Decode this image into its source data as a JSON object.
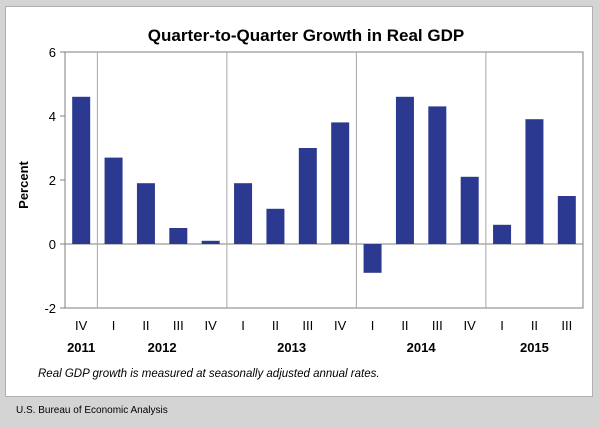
{
  "source_label": "U.S. Bureau of Economic Analysis",
  "chart_data": {
    "type": "bar",
    "title": "Quarter-to-Quarter Growth in Real GDP",
    "ylabel": "Percent",
    "xlabel": "",
    "ylim": [
      -2,
      6
    ],
    "yticks": [
      -2,
      0,
      2,
      4,
      6
    ],
    "grid": false,
    "categories": [
      "IV",
      "I",
      "II",
      "III",
      "IV",
      "I",
      "II",
      "III",
      "IV",
      "I",
      "II",
      "III",
      "IV",
      "I",
      "II",
      "III"
    ],
    "year_labels": [
      "2011",
      "2012",
      "2013",
      "2014",
      "2015"
    ],
    "values": [
      4.6,
      2.7,
      1.9,
      0.5,
      0.1,
      1.9,
      1.1,
      3.0,
      3.8,
      -0.9,
      4.6,
      4.3,
      2.1,
      0.6,
      3.9,
      1.5
    ],
    "bar_color": "#2b3990",
    "note": "Real GDP growth is measured at seasonally adjusted annual rates."
  }
}
